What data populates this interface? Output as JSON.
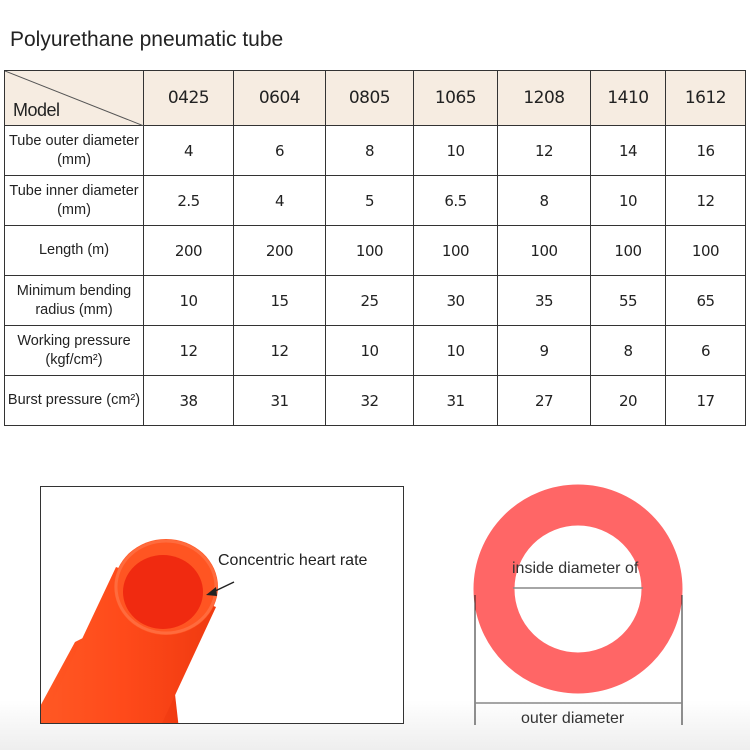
{
  "title": "Polyurethane pneumatic tube",
  "table": {
    "corner_label": "Model",
    "models": [
      "0425",
      "0604",
      "0805",
      "1065",
      "1208",
      "1410",
      "1612"
    ],
    "rows": [
      {
        "label": "Tube outer diameter (mm)",
        "values": [
          "4",
          "6",
          "8",
          "10",
          "12",
          "14",
          "16"
        ]
      },
      {
        "label": "Tube inner diameter (mm)",
        "values": [
          "2.5",
          "4",
          "5",
          "6.5",
          "8",
          "10",
          "12"
        ]
      },
      {
        "label": "Length (m)",
        "values": [
          "200",
          "200",
          "100",
          "100",
          "100",
          "100",
          "100"
        ]
      },
      {
        "label": "Minimum bending radius (mm)",
        "values": [
          "10",
          "15",
          "25",
          "30",
          "35",
          "55",
          "65"
        ]
      },
      {
        "label": "Working pressure (kgf/cm²)",
        "values": [
          "12",
          "12",
          "10",
          "10",
          "9",
          "8",
          "6"
        ]
      },
      {
        "label": "Burst pressure (cm²)",
        "values": [
          "38",
          "31",
          "32",
          "31",
          "27",
          "20",
          "17"
        ]
      }
    ]
  },
  "photo": {
    "annotation": "Concentric heart rate"
  },
  "diagram": {
    "inner_label": "inside diameter of",
    "outer_label": "outer diameter",
    "ring_color": "#ff6666"
  },
  "colors": {
    "tube": "#ff4a1c",
    "header_bg": "#f6ece1"
  }
}
